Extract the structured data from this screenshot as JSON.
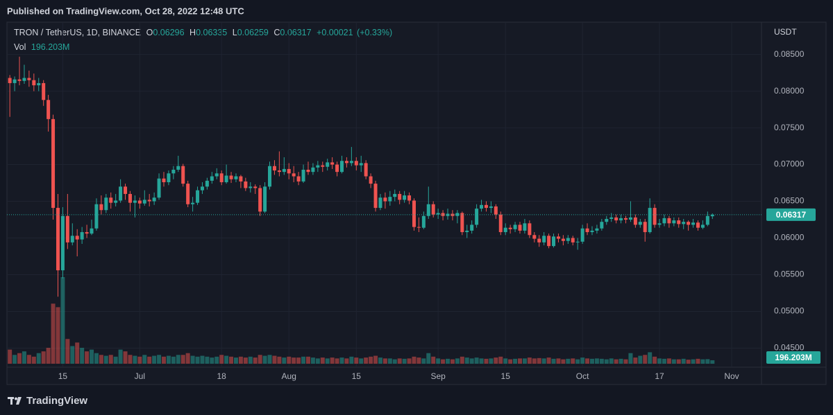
{
  "header": {
    "published": "Published on TradingView.com, Oct 28, 2022 12:48 UTC",
    "symbol": "TRON / TetherUS, 1D, BINANCE",
    "o_label": "O",
    "open": "0.06296",
    "h_label": "H",
    "high": "0.06335",
    "l_label": "L",
    "low": "0.06259",
    "c_label": "C",
    "close": "0.06317",
    "change": "+0.00021",
    "change_pct": "(+0.33%)",
    "vol_label": "Vol",
    "volume": "196.203M"
  },
  "footer": {
    "brand": "TradingView"
  },
  "chart_data": {
    "type": "candlestick",
    "currency": "USDT",
    "open": [
      0.0818,
      0.0811,
      0.0816,
      0.0814,
      0.0818,
      0.0815,
      0.0808,
      0.0811,
      0.0788,
      0.0762,
      0.0641,
      0.0556,
      0.063,
      0.0594,
      0.0603,
      0.0598,
      0.0608,
      0.0606,
      0.0613,
      0.0646,
      0.0638,
      0.0655,
      0.0648,
      0.0651,
      0.067,
      0.066,
      0.0648,
      0.0651,
      0.0647,
      0.0652,
      0.065,
      0.0655,
      0.0681,
      0.0676,
      0.0688,
      0.0693,
      0.0698,
      0.0674,
      0.0646,
      0.0648,
      0.0665,
      0.067,
      0.0678,
      0.0684,
      0.0688,
      0.0676,
      0.0685,
      0.068,
      0.0684,
      0.0677,
      0.0668,
      0.067,
      0.0668,
      0.0636,
      0.067,
      0.0698,
      0.0692,
      0.069,
      0.0694,
      0.0688,
      0.0684,
      0.0677,
      0.0693,
      0.069,
      0.0696,
      0.0699,
      0.0697,
      0.0703,
      0.07,
      0.069,
      0.0705,
      0.0702,
      0.0705,
      0.0699,
      0.0702,
      0.0684,
      0.0674,
      0.0641,
      0.0655,
      0.065,
      0.0656,
      0.066,
      0.0652,
      0.0658,
      0.0651,
      0.0615,
      0.0614,
      0.063,
      0.0646,
      0.0632,
      0.0634,
      0.063,
      0.0633,
      0.063,
      0.0634,
      0.0608,
      0.061,
      0.0618,
      0.064,
      0.0645,
      0.0641,
      0.0643,
      0.0632,
      0.0608,
      0.0614,
      0.0612,
      0.0618,
      0.061,
      0.062,
      0.0604,
      0.0599,
      0.0594,
      0.0603,
      0.0589,
      0.0602,
      0.0599,
      0.0596,
      0.06,
      0.0594,
      0.0595,
      0.0613,
      0.0608,
      0.061,
      0.0613,
      0.0622,
      0.0626,
      0.0628,
      0.0624,
      0.0627,
      0.0625,
      0.0628,
      0.0618,
      0.0622,
      0.0608,
      0.0641,
      0.0618,
      0.062,
      0.0627,
      0.062,
      0.0624,
      0.0619,
      0.0622,
      0.0618,
      0.0621,
      0.0614,
      0.0618,
      0.06296
    ],
    "high": [
      0.0822,
      0.082,
      0.0847,
      0.0836,
      0.0828,
      0.0824,
      0.0818,
      0.0815,
      0.0795,
      0.0768,
      0.066,
      0.0642,
      0.066,
      0.062,
      0.0612,
      0.0615,
      0.0618,
      0.0625,
      0.0654,
      0.0658,
      0.066,
      0.0662,
      0.066,
      0.068,
      0.0674,
      0.0664,
      0.0658,
      0.0655,
      0.0665,
      0.066,
      0.0662,
      0.0688,
      0.069,
      0.0692,
      0.0698,
      0.0712,
      0.0701,
      0.0678,
      0.0656,
      0.067,
      0.0676,
      0.0682,
      0.069,
      0.0695,
      0.0692,
      0.07,
      0.069,
      0.0688,
      0.0686,
      0.0682,
      0.0676,
      0.0673,
      0.0672,
      0.0676,
      0.0704,
      0.0706,
      0.0718,
      0.071,
      0.0702,
      0.0698,
      0.069,
      0.07,
      0.0704,
      0.0702,
      0.0705,
      0.0704,
      0.0708,
      0.071,
      0.0704,
      0.0712,
      0.071,
      0.0724,
      0.071,
      0.0712,
      0.0706,
      0.0688,
      0.0678,
      0.066,
      0.0662,
      0.0664,
      0.0666,
      0.0664,
      0.0664,
      0.0662,
      0.0654,
      0.0628,
      0.0636,
      0.067,
      0.065,
      0.064,
      0.0638,
      0.064,
      0.0638,
      0.0638,
      0.0636,
      0.0618,
      0.0624,
      0.0646,
      0.0652,
      0.065,
      0.065,
      0.0646,
      0.0636,
      0.062,
      0.0618,
      0.0622,
      0.0622,
      0.0626,
      0.0624,
      0.0608,
      0.0604,
      0.0608,
      0.0606,
      0.0606,
      0.0606,
      0.0604,
      0.0604,
      0.0603,
      0.06,
      0.0618,
      0.062,
      0.0616,
      0.0618,
      0.0626,
      0.063,
      0.0634,
      0.0632,
      0.0632,
      0.063,
      0.065,
      0.0632,
      0.0626,
      0.0626,
      0.0654,
      0.0646,
      0.0626,
      0.0632,
      0.063,
      0.0628,
      0.0628,
      0.0626,
      0.0624,
      0.0626,
      0.0624,
      0.0624,
      0.0636,
      0.06335
    ],
    "low": [
      0.0765,
      0.08,
      0.0808,
      0.081,
      0.0806,
      0.08,
      0.08,
      0.078,
      0.0745,
      0.0625,
      0.052,
      0.0545,
      0.0585,
      0.059,
      0.0575,
      0.0592,
      0.06,
      0.0604,
      0.061,
      0.0632,
      0.0634,
      0.064,
      0.0643,
      0.0648,
      0.0652,
      0.0636,
      0.0628,
      0.064,
      0.0644,
      0.0643,
      0.0645,
      0.0652,
      0.067,
      0.0672,
      0.068,
      0.069,
      0.067,
      0.0642,
      0.0636,
      0.0645,
      0.066,
      0.0666,
      0.0674,
      0.068,
      0.0672,
      0.0674,
      0.0675,
      0.0676,
      0.0668,
      0.0664,
      0.0662,
      0.066,
      0.063,
      0.0634,
      0.0666,
      0.0686,
      0.0684,
      0.0686,
      0.068,
      0.0676,
      0.0672,
      0.0675,
      0.0686,
      0.0686,
      0.069,
      0.069,
      0.0692,
      0.0694,
      0.0684,
      0.0688,
      0.0696,
      0.0698,
      0.0692,
      0.069,
      0.068,
      0.0668,
      0.0636,
      0.0638,
      0.064,
      0.0644,
      0.065,
      0.0646,
      0.0648,
      0.0646,
      0.061,
      0.0608,
      0.0612,
      0.0626,
      0.0628,
      0.0626,
      0.0624,
      0.0625,
      0.0624,
      0.062,
      0.0604,
      0.06,
      0.0606,
      0.0614,
      0.0636,
      0.0636,
      0.0634,
      0.0626,
      0.0604,
      0.0604,
      0.0606,
      0.0608,
      0.0606,
      0.0606,
      0.06,
      0.0594,
      0.0588,
      0.059,
      0.0586,
      0.0587,
      0.0594,
      0.059,
      0.0592,
      0.059,
      0.0584,
      0.0592,
      0.0604,
      0.0604,
      0.0606,
      0.061,
      0.0618,
      0.0622,
      0.062,
      0.062,
      0.062,
      0.0622,
      0.0614,
      0.0614,
      0.0595,
      0.0606,
      0.0614,
      0.0614,
      0.0616,
      0.0614,
      0.0616,
      0.0614,
      0.0612,
      0.061,
      0.0614,
      0.061,
      0.0612,
      0.0616,
      0.06259
    ],
    "close": [
      0.0811,
      0.0816,
      0.0814,
      0.0818,
      0.0815,
      0.0808,
      0.0811,
      0.0788,
      0.0762,
      0.0641,
      0.0556,
      0.063,
      0.0594,
      0.0603,
      0.0598,
      0.0608,
      0.0606,
      0.0613,
      0.0646,
      0.0638,
      0.0655,
      0.0648,
      0.0651,
      0.067,
      0.066,
      0.0648,
      0.0651,
      0.0647,
      0.0652,
      0.065,
      0.0655,
      0.0681,
      0.0676,
      0.0688,
      0.0693,
      0.0698,
      0.0674,
      0.0646,
      0.0648,
      0.0665,
      0.067,
      0.0678,
      0.0684,
      0.0688,
      0.0676,
      0.0685,
      0.068,
      0.0684,
      0.0677,
      0.0668,
      0.067,
      0.0668,
      0.0636,
      0.067,
      0.0698,
      0.0692,
      0.069,
      0.0694,
      0.0688,
      0.0684,
      0.0677,
      0.0693,
      0.069,
      0.0696,
      0.0699,
      0.0697,
      0.0703,
      0.07,
      0.069,
      0.0705,
      0.0702,
      0.0705,
      0.0699,
      0.0702,
      0.0684,
      0.0674,
      0.0641,
      0.0655,
      0.065,
      0.0656,
      0.066,
      0.0652,
      0.0658,
      0.0651,
      0.0615,
      0.0614,
      0.063,
      0.0646,
      0.0632,
      0.0634,
      0.063,
      0.0633,
      0.063,
      0.0634,
      0.0608,
      0.061,
      0.0618,
      0.064,
      0.0645,
      0.0641,
      0.0643,
      0.0632,
      0.0608,
      0.0614,
      0.0612,
      0.0618,
      0.061,
      0.062,
      0.0604,
      0.0599,
      0.0594,
      0.0603,
      0.0589,
      0.0602,
      0.0599,
      0.0596,
      0.06,
      0.0594,
      0.0595,
      0.0613,
      0.0608,
      0.061,
      0.0613,
      0.0622,
      0.0626,
      0.0628,
      0.0624,
      0.0627,
      0.0625,
      0.0628,
      0.0618,
      0.0622,
      0.0608,
      0.0641,
      0.0618,
      0.062,
      0.0627,
      0.062,
      0.0624,
      0.0619,
      0.0622,
      0.0618,
      0.0621,
      0.0614,
      0.0618,
      0.063,
      0.06317
    ],
    "volume": [
      800,
      500,
      600,
      700,
      500,
      400,
      600,
      700,
      900,
      3400,
      3200,
      4900,
      1400,
      1000,
      1200,
      900,
      700,
      800,
      600,
      500,
      450,
      500,
      400,
      800,
      700,
      500,
      450,
      400,
      500,
      400,
      450,
      500,
      400,
      450,
      400,
      500,
      500,
      600,
      450,
      400,
      450,
      400,
      350,
      400,
      500,
      450,
      400,
      350,
      400,
      350,
      400,
      350,
      500,
      450,
      500,
      450,
      400,
      350,
      400,
      350,
      350,
      400,
      400,
      350,
      300,
      350,
      300,
      350,
      300,
      350,
      300,
      400,
      350,
      300,
      350,
      400,
      450,
      350,
      300,
      300,
      250,
      300,
      280,
      300,
      400,
      350,
      300,
      600,
      400,
      300,
      250,
      280,
      250,
      300,
      400,
      350,
      300,
      350,
      300,
      280,
      300,
      350,
      400,
      300,
      250,
      280,
      300,
      300,
      350,
      300,
      320,
      300,
      350,
      280,
      300,
      250,
      280,
      300,
      250,
      350,
      300,
      280,
      300,
      280,
      250,
      300,
      250,
      280,
      250,
      600,
      350,
      450,
      500,
      650,
      400,
      300,
      280,
      300,
      250,
      250,
      280,
      230,
      250,
      280,
      250,
      260,
      196.203
    ],
    "ylim": [
      0.0424,
      0.0894
    ],
    "yticks": [
      {
        "value": 0.045,
        "label": "0.04500"
      },
      {
        "value": 0.05,
        "label": "0.05000"
      },
      {
        "value": 0.055,
        "label": "0.05500"
      },
      {
        "value": 0.06,
        "label": "0.06000"
      },
      {
        "value": 0.065,
        "label": "0.06500"
      },
      {
        "value": 0.07,
        "label": "0.07000"
      },
      {
        "value": 0.075,
        "label": "0.07500"
      },
      {
        "value": 0.08,
        "label": "0.08000"
      },
      {
        "value": 0.085,
        "label": "0.08500"
      }
    ],
    "xlim": [
      -0.6,
      156.2
    ],
    "xticks": [
      {
        "value": 11,
        "label": "15"
      },
      {
        "value": 27,
        "label": "Jul"
      },
      {
        "value": 44,
        "label": "18"
      },
      {
        "value": 58,
        "label": "Aug"
      },
      {
        "value": 72,
        "label": "15"
      },
      {
        "value": 89,
        "label": "Sep"
      },
      {
        "value": 103,
        "label": "15"
      },
      {
        "value": 119,
        "label": "Oct"
      },
      {
        "value": 135,
        "label": "17"
      },
      {
        "value": 150,
        "label": "Nov"
      }
    ],
    "up_color": "#26a69a",
    "down_color": "#ef5350",
    "grid": true
  }
}
